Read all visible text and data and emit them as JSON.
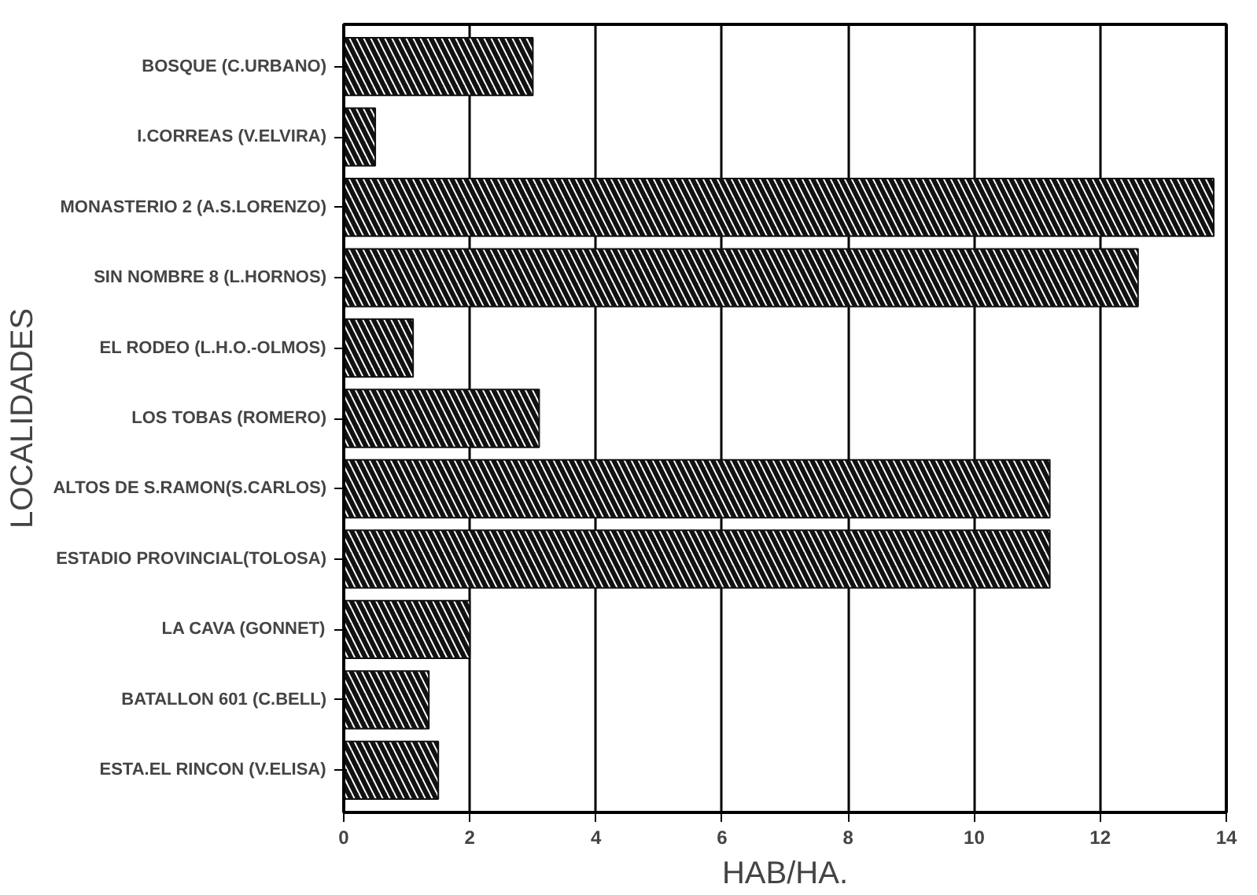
{
  "chart_data": {
    "type": "bar",
    "orientation": "horizontal",
    "xlabel": "HAB/HA.",
    "ylabel": "LOCALIDADES",
    "categories": [
      "BOSQUE (C.URBANO)",
      "I.CORREAS (V.ELVIRA)",
      "MONASTERIO 2 (A.S.LORENZO)",
      "SIN NOMBRE 8 (L.HORNOS)",
      "EL RODEO (L.H.O.-OLMOS)",
      "LOS TOBAS (ROMERO)",
      "ALTOS DE S.RAMON(S.CARLOS)",
      "ESTADIO PROVINCIAL(TOLOSA)",
      "LA CAVA (GONNET)",
      "BATALLON 601 (C.BELL)",
      "ESTA.EL RINCON (V.ELISA)"
    ],
    "values": [
      3.0,
      0.5,
      13.8,
      12.6,
      1.1,
      3.1,
      11.2,
      11.2,
      2.0,
      1.35,
      1.5
    ],
    "color": "#111111",
    "xlim": [
      0,
      14
    ],
    "xticks": [
      0,
      2,
      4,
      6,
      8,
      10,
      12,
      14
    ],
    "grid": "x"
  }
}
